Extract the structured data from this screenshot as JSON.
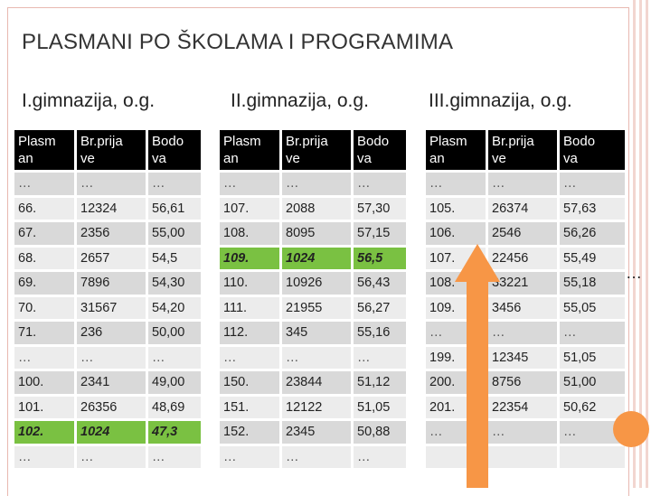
{
  "title": "PLASMANI PO ŠKOLAMA I PROGRAMIMA",
  "side_dots": "…",
  "schools": [
    {
      "name": "I.gimnazija, o.g.",
      "headers": [
        "Plasm an",
        "Br.prija ve",
        "Bodo va"
      ],
      "rows": [
        {
          "cells": [
            "…",
            "…",
            "…"
          ],
          "highlight": false
        },
        {
          "cells": [
            "66.",
            "12324",
            "56,61"
          ],
          "highlight": false
        },
        {
          "cells": [
            "67.",
            "2356",
            "55,00"
          ],
          "highlight": false
        },
        {
          "cells": [
            "68.",
            "2657",
            "54,5"
          ],
          "highlight": false
        },
        {
          "cells": [
            "69.",
            "7896",
            "54,30"
          ],
          "highlight": false
        },
        {
          "cells": [
            "70.",
            "31567",
            "54,20"
          ],
          "highlight": false
        },
        {
          "cells": [
            "71.",
            "236",
            "50,00"
          ],
          "highlight": false
        },
        {
          "cells": [
            "…",
            "…",
            "…"
          ],
          "highlight": false
        },
        {
          "cells": [
            "100.",
            "2341",
            "49,00"
          ],
          "highlight": false
        },
        {
          "cells": [
            "101.",
            "26356",
            "48,69"
          ],
          "highlight": false
        },
        {
          "cells": [
            "102.",
            "1024",
            "47,3"
          ],
          "highlight": true
        },
        {
          "cells": [
            "…",
            "…",
            "…"
          ],
          "highlight": false
        }
      ]
    },
    {
      "name": "II.gimnazija, o.g.",
      "headers": [
        "Plasm an",
        "Br.prija ve",
        "Bodo va"
      ],
      "rows": [
        {
          "cells": [
            "…",
            "…",
            "…"
          ],
          "highlight": false
        },
        {
          "cells": [
            "107.",
            "2088",
            "57,30"
          ],
          "highlight": false
        },
        {
          "cells": [
            "108.",
            "8095",
            "57,15"
          ],
          "highlight": false
        },
        {
          "cells": [
            "109.",
            "1024",
            "56,5"
          ],
          "highlight": true
        },
        {
          "cells": [
            "110.",
            "10926",
            "56,43"
          ],
          "highlight": false
        },
        {
          "cells": [
            "111.",
            "21955",
            "56,27"
          ],
          "highlight": false
        },
        {
          "cells": [
            "112.",
            "345",
            "55,16"
          ],
          "highlight": false
        },
        {
          "cells": [
            "…",
            "…",
            "…"
          ],
          "highlight": false
        },
        {
          "cells": [
            "150.",
            "23844",
            "51,12"
          ],
          "highlight": false
        },
        {
          "cells": [
            "151.",
            "12122",
            "51,05"
          ],
          "highlight": false
        },
        {
          "cells": [
            "152.",
            "2345",
            "50,88"
          ],
          "highlight": false
        },
        {
          "cells": [
            "…",
            "…",
            "…"
          ],
          "highlight": false
        }
      ]
    },
    {
      "name": "III.gimnazija, o.g.",
      "headers": [
        "Plasm an",
        "Br.prija ve",
        "Bodo va"
      ],
      "rows": [
        {
          "cells": [
            "…",
            "…",
            "…"
          ],
          "highlight": false
        },
        {
          "cells": [
            "105.",
            "26374",
            "57,63"
          ],
          "highlight": false
        },
        {
          "cells": [
            "106.",
            "2546",
            "56,26"
          ],
          "highlight": false
        },
        {
          "cells": [
            "107.",
            "22456",
            "55,49"
          ],
          "highlight": false
        },
        {
          "cells": [
            "108.",
            "33221",
            "55,18"
          ],
          "highlight": false
        },
        {
          "cells": [
            "109.",
            "3456",
            "55,05"
          ],
          "highlight": false
        },
        {
          "cells": [
            "…",
            "…",
            "…"
          ],
          "highlight": false
        },
        {
          "cells": [
            "199.",
            "12345",
            "51,05"
          ],
          "highlight": false
        },
        {
          "cells": [
            "200.",
            "8756",
            "51,00"
          ],
          "highlight": false
        },
        {
          "cells": [
            "201.",
            "22354",
            "50,62"
          ],
          "highlight": false
        },
        {
          "cells": [
            "…",
            "…",
            "…"
          ],
          "highlight": false
        },
        {
          "cells": [
            "",
            "",
            ""
          ],
          "highlight": false
        }
      ]
    }
  ]
}
